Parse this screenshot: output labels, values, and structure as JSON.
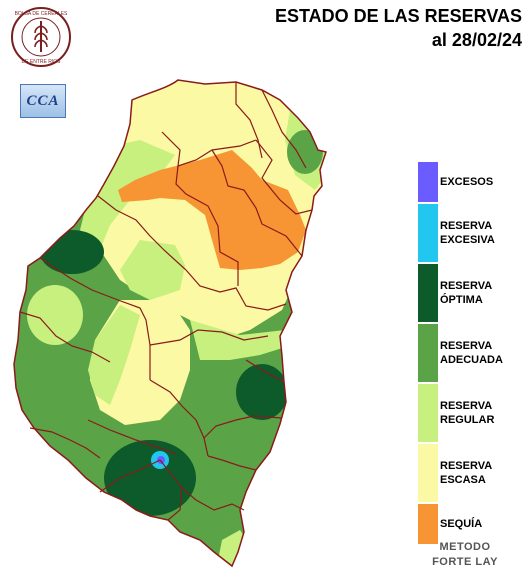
{
  "header": {
    "title_line1": "ESTADO DE LAS RESERVAS",
    "title_line2": "al 28/02/24"
  },
  "logos": {
    "seal_text": "BOLSA DE CEREALES DE ENTRE RIOS",
    "cca_text": "CCA"
  },
  "legend": {
    "items": [
      {
        "label": "EXCESOS",
        "color": "#6a5cff"
      },
      {
        "label": "RESERVA EXCESIVA",
        "color": "#22c7f0"
      },
      {
        "label": "RESERVA ÓPTIMA",
        "color": "#0d5a2b"
      },
      {
        "label": "RESERVA ADECUADA",
        "color": "#5aa347"
      },
      {
        "label": "RESERVA REGULAR",
        "color": "#c8f07e"
      },
      {
        "label": "RESERVA ESCASA",
        "color": "#fbf9a4"
      },
      {
        "label": "SEQUÍA",
        "color": "#f79534"
      }
    ]
  },
  "footer": {
    "line1": "METODO",
    "line2": "FORTE LAY"
  }
}
